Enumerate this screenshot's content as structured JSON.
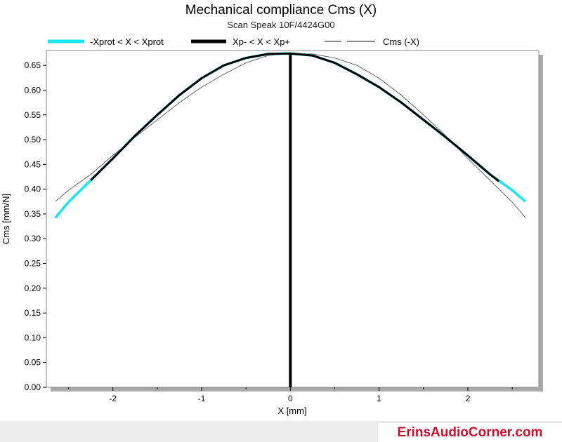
{
  "footer": {
    "brand": "ErinsAudioCorner.com"
  },
  "chart_data": {
    "type": "line",
    "title": "Mechanical compliance Cms (X)",
    "subtitle": "Scan Speak 10F/4424G00",
    "xlabel": "X [mm]",
    "ylabel": "Cms [mm/N]",
    "xlim": [
      -2.75,
      2.8
    ],
    "ylim": [
      0,
      0.68
    ],
    "xticks": [
      -2,
      -1,
      0,
      1,
      2
    ],
    "xtick_labels": [
      "-2",
      "-1",
      "0",
      "1",
      "2"
    ],
    "yticks": [
      0,
      0.05,
      0.1,
      0.15,
      0.2,
      0.25,
      0.3,
      0.35,
      0.4,
      0.45,
      0.5,
      0.55,
      0.6,
      0.65
    ],
    "ytick_labels": [
      "0.00",
      "0.05",
      "0.10",
      "0.15",
      "0.20",
      "0.25",
      "0.30",
      "0.35",
      "0.40",
      "0.45",
      "0.50",
      "0.55",
      "0.60",
      "0.65"
    ],
    "grid": false,
    "legend_position": "top",
    "vertical_marker_x": 0,
    "colors": {
      "xprot": "#19e6f0",
      "xp": "#000000",
      "mirror": "#555555"
    },
    "series": [
      {
        "name": "-Xprot < X < Xprot",
        "x": [
          -2.65,
          -2.5,
          -2.25,
          -2.0,
          -1.75,
          -1.5,
          -1.25,
          -1.0,
          -0.75,
          -0.5,
          -0.25,
          0.0,
          0.25,
          0.5,
          0.75,
          1.0,
          1.25,
          1.5,
          1.75,
          2.0,
          2.25,
          2.5,
          2.65
        ],
        "y": [
          0.342,
          0.374,
          0.418,
          0.462,
          0.508,
          0.55,
          0.59,
          0.624,
          0.65,
          0.665,
          0.673,
          0.674,
          0.67,
          0.655,
          0.632,
          0.606,
          0.575,
          0.54,
          0.505,
          0.468,
          0.43,
          0.398,
          0.375
        ]
      },
      {
        "name": "Xp- < X < Xp+",
        "x": [
          -2.25,
          -2.0,
          -1.75,
          -1.5,
          -1.25,
          -1.0,
          -0.75,
          -0.5,
          -0.25,
          0.0,
          0.25,
          0.5,
          0.75,
          1.0,
          1.25,
          1.5,
          1.75,
          2.0,
          2.25,
          2.35
        ],
        "y": [
          0.418,
          0.462,
          0.508,
          0.55,
          0.59,
          0.624,
          0.65,
          0.665,
          0.673,
          0.674,
          0.67,
          0.655,
          0.632,
          0.606,
          0.575,
          0.54,
          0.505,
          0.468,
          0.43,
          0.416
        ]
      },
      {
        "name": "Cms (-X)",
        "x": [
          -2.65,
          -2.5,
          -2.25,
          -2.0,
          -1.75,
          -1.5,
          -1.25,
          -1.0,
          -0.75,
          -0.5,
          -0.25,
          0.0,
          0.25,
          0.5,
          0.75,
          1.0,
          1.25,
          1.5,
          1.75,
          2.0,
          2.25,
          2.5,
          2.65
        ],
        "y": [
          0.375,
          0.398,
          0.43,
          0.468,
          0.505,
          0.54,
          0.575,
          0.606,
          0.632,
          0.655,
          0.67,
          0.674,
          0.673,
          0.665,
          0.65,
          0.624,
          0.59,
          0.55,
          0.508,
          0.462,
          0.418,
          0.374,
          0.342
        ]
      }
    ]
  }
}
